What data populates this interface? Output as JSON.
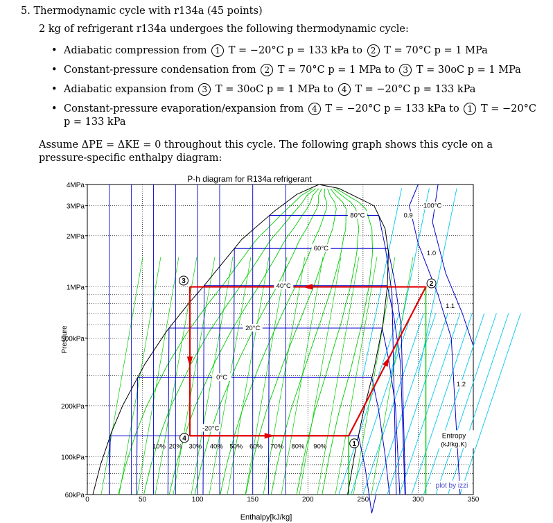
{
  "problem": {
    "heading": "5. Thermodynamic cycle with r134a (45 points)",
    "intro": "2 kg of refrigerant r134a undergoes the following thermodynamic cycle:",
    "steps": [
      {
        "pre": "Adiabatic compression from",
        "s1": "1",
        "m1": "T = −20°C p = 133 kPa to",
        "s2": "2",
        "m2": "T = 70°C p = 1 MPa"
      },
      {
        "pre": "Constant-pressure condensation from",
        "s1": "2",
        "m1": "T = 70°C p = 1 MPa to",
        "s2": "3",
        "m2": "T = 30oC p = 1 MPa"
      },
      {
        "pre": "Adiabatic expansion from",
        "s1": "3",
        "m1": "T = 30oC p = 1 MPa to",
        "s2": "4",
        "m2": "T = −20°C p = 133 kPa"
      },
      {
        "pre": "Constant-pressure evaporation/expansion from",
        "s1": "4",
        "m1": "T = −20°C p = 133 kPa to",
        "s2": "1",
        "m2": "T = −20°C p = 133 kPa"
      }
    ],
    "note": "Assume ΔPE = ΔKE = 0 throughout this cycle. The following graph shows this cycle on a pressure-specific enthalpy diagram:"
  },
  "chart_data": {
    "type": "line",
    "title": "P-h diagram for R134a refrigerant",
    "xlabel": "Enthalpy[kJ/kg]",
    "ylabel": "Pressure",
    "xlim": [
      0,
      350
    ],
    "ylim_kpa": [
      60,
      4000
    ],
    "log_y": true,
    "x_ticks": [
      "0",
      "50",
      "100",
      "150",
      "200",
      "250",
      "300",
      "350"
    ],
    "y_ticks": [
      {
        "label": "4MPa",
        "p": 4000
      },
      {
        "label": "3MPa",
        "p": 3000
      },
      {
        "label": "2MPa",
        "p": 2000
      },
      {
        "label": "1MPa",
        "p": 1000
      },
      {
        "label": "500kPa",
        "p": 500
      },
      {
        "label": "200kPa",
        "p": 200
      },
      {
        "label": "100kPa",
        "p": 100
      },
      {
        "label": "60kPa",
        "p": 60
      }
    ],
    "isotherm_labels": [
      "80°C",
      "60°C",
      "40°C",
      "20°C",
      "0°C",
      "-20°C",
      "100°C"
    ],
    "quality_labels": [
      "10%",
      "20%",
      "30%",
      "40%",
      "50%",
      "60%",
      "70%",
      "80%",
      "90%"
    ],
    "entropy_labels": [
      "0.9",
      "1.0",
      "1.1",
      "1.2"
    ],
    "entropy_title": "Entropy",
    "entropy_unit": "(kJ/kg.K)",
    "watermark": "plot by izzi",
    "cycle": {
      "points": [
        {
          "id": "1",
          "h": 237,
          "p": 133
        },
        {
          "id": "2",
          "h": 307,
          "p": 1000
        },
        {
          "id": "3",
          "h": 93,
          "p": 1000
        },
        {
          "id": "4",
          "h": 93,
          "p": 133
        }
      ],
      "color": "#e00000"
    },
    "colors": {
      "isotherm": "#0000cc",
      "quality": "#00cc00",
      "entropy": "#00c8ee",
      "dome": "#000000",
      "cycle": "#e00000",
      "grid": "#000000"
    }
  }
}
